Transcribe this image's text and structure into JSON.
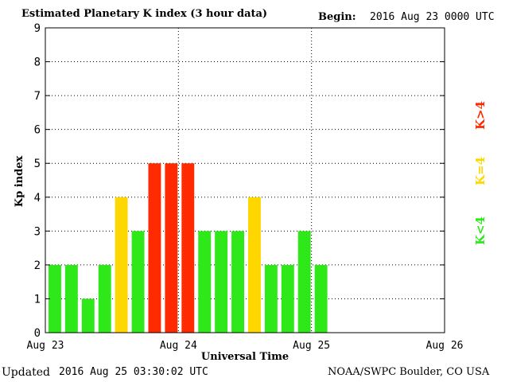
{
  "header": {
    "title": "Estimated Planetary K index (3 hour data)",
    "begin_label": "Begin:",
    "begin_value": "2016 Aug 23 0000 UTC"
  },
  "footer": {
    "updated_label": "Updated",
    "updated_value": "2016 Aug 25 03:30:02 UTC",
    "credit": "NOAA/SWPC Boulder, CO USA"
  },
  "legend": [
    {
      "label": "K>4",
      "color": "#ff2a00"
    },
    {
      "label": "K=4",
      "color": "#ffd700"
    },
    {
      "label": "K<4",
      "color": "#2ee81a"
    }
  ],
  "colors": {
    "low": "#2ee81a",
    "mid": "#ffd700",
    "high": "#ff2a00"
  },
  "chart_data": {
    "type": "bar",
    "xlabel": "Universal Time",
    "ylabel": "Kp index",
    "ylim": [
      0,
      9
    ],
    "yticks": [
      "0",
      "1",
      "2",
      "3",
      "4",
      "5",
      "6",
      "7",
      "8",
      "9"
    ],
    "xticks": [
      "Aug 23",
      "Aug 24",
      "Aug 25",
      "Aug 26"
    ],
    "grid": true,
    "slots_total": 24,
    "values": [
      2,
      2,
      1,
      2,
      4,
      3,
      5,
      5,
      5,
      3,
      3,
      3,
      4,
      2,
      2,
      3,
      2
    ]
  }
}
